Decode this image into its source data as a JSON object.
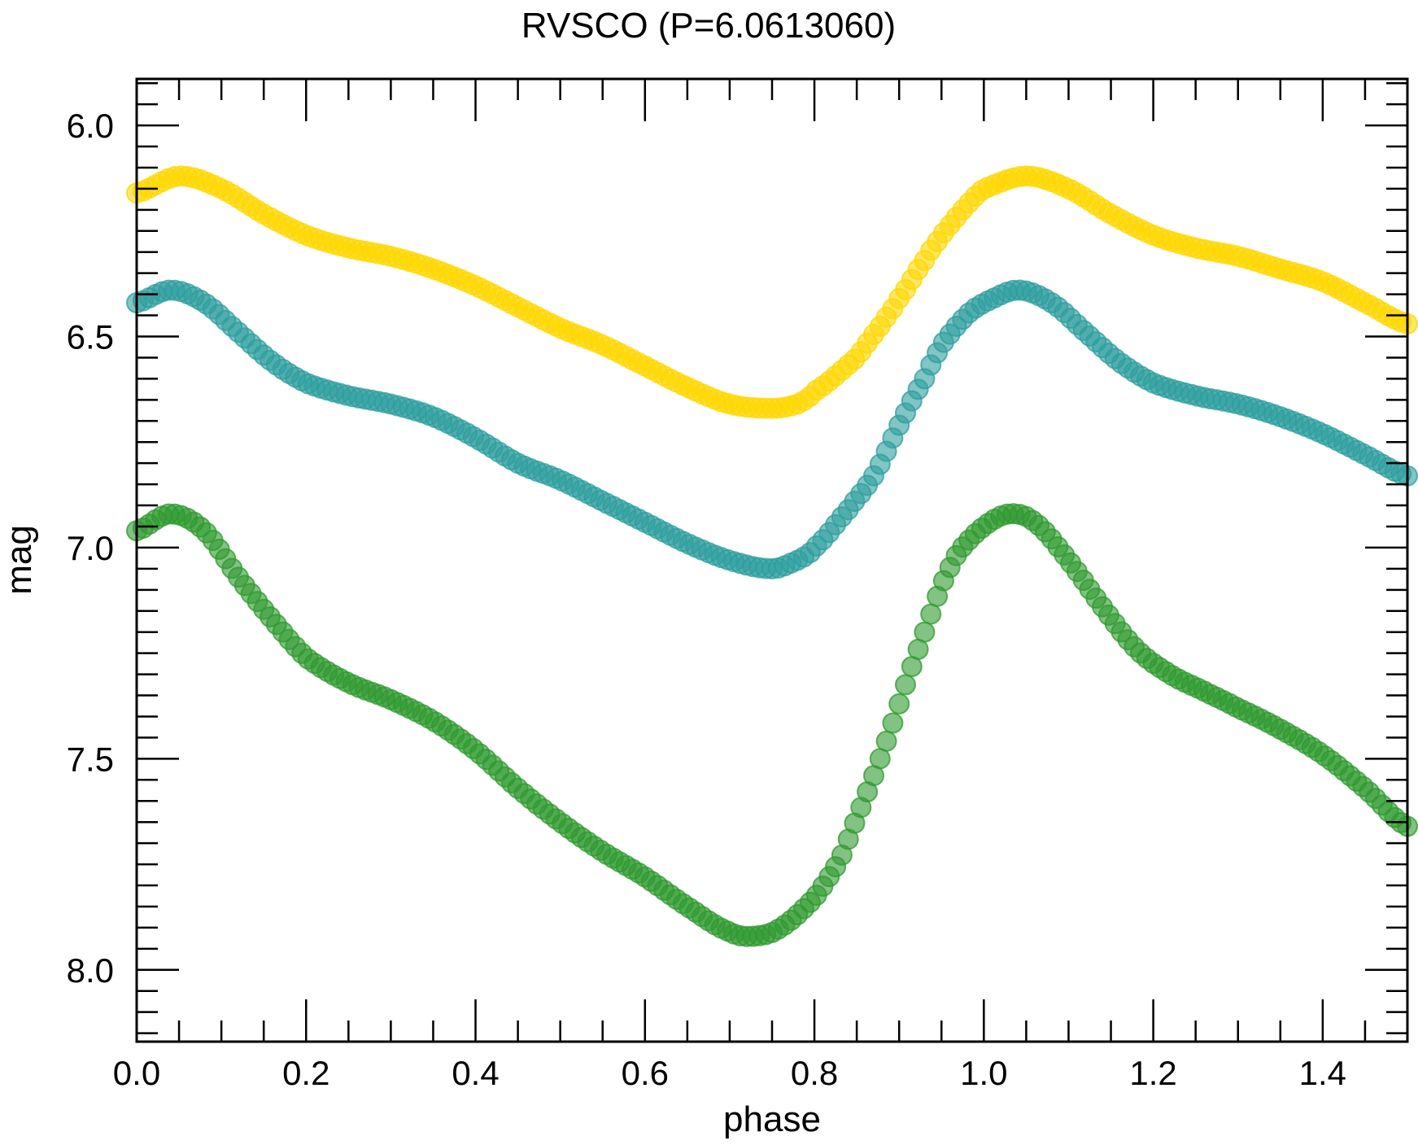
{
  "chart_data": {
    "type": "scatter",
    "title": "RVSCO (P=6.0613060)",
    "xlabel": "phase",
    "ylabel": "mag",
    "xlim": [
      0.0,
      1.5
    ],
    "ylim": [
      8.17,
      5.89
    ],
    "y_inverted": true,
    "grid": false,
    "x_ticks": [
      "0.0",
      "0.2",
      "0.4",
      "0.6",
      "0.8",
      "1.0",
      "1.2",
      "1.4"
    ],
    "y_ticks": [
      "6.0",
      "6.5",
      "7.0",
      "7.5",
      "8.0"
    ],
    "series": [
      {
        "color": "#FFD700",
        "points": [
          [
            0.0,
            6.16
          ],
          [
            0.05,
            6.12
          ],
          [
            0.1,
            6.15
          ],
          [
            0.15,
            6.21
          ],
          [
            0.2,
            6.26
          ],
          [
            0.25,
            6.29
          ],
          [
            0.3,
            6.31
          ],
          [
            0.35,
            6.34
          ],
          [
            0.4,
            6.38
          ],
          [
            0.45,
            6.43
          ],
          [
            0.5,
            6.48
          ],
          [
            0.55,
            6.52
          ],
          [
            0.6,
            6.57
          ],
          [
            0.65,
            6.62
          ],
          [
            0.7,
            6.66
          ],
          [
            0.75,
            6.67
          ],
          [
            0.78,
            6.66
          ],
          [
            0.8,
            6.63
          ],
          [
            0.85,
            6.55
          ],
          [
            0.88,
            6.47
          ],
          [
            0.9,
            6.41
          ],
          [
            0.93,
            6.32
          ],
          [
            0.95,
            6.26
          ],
          [
            0.98,
            6.19
          ],
          [
            1.0,
            6.15
          ],
          [
            1.05,
            6.12
          ],
          [
            1.1,
            6.15
          ],
          [
            1.15,
            6.21
          ],
          [
            1.2,
            6.26
          ],
          [
            1.25,
            6.29
          ],
          [
            1.3,
            6.31
          ],
          [
            1.35,
            6.34
          ],
          [
            1.4,
            6.37
          ],
          [
            1.45,
            6.42
          ],
          [
            1.5,
            6.47
          ]
        ]
      },
      {
        "color": "#2E9E9E",
        "points": [
          [
            0.0,
            6.42
          ],
          [
            0.04,
            6.39
          ],
          [
            0.08,
            6.42
          ],
          [
            0.12,
            6.49
          ],
          [
            0.16,
            6.56
          ],
          [
            0.2,
            6.61
          ],
          [
            0.25,
            6.64
          ],
          [
            0.3,
            6.66
          ],
          [
            0.35,
            6.69
          ],
          [
            0.4,
            6.74
          ],
          [
            0.45,
            6.8
          ],
          [
            0.5,
            6.84
          ],
          [
            0.55,
            6.89
          ],
          [
            0.6,
            6.94
          ],
          [
            0.65,
            6.99
          ],
          [
            0.7,
            7.03
          ],
          [
            0.75,
            7.05
          ],
          [
            0.78,
            7.03
          ],
          [
            0.8,
            7.0
          ],
          [
            0.84,
            6.91
          ],
          [
            0.87,
            6.83
          ],
          [
            0.9,
            6.71
          ],
          [
            0.93,
            6.6
          ],
          [
            0.95,
            6.52
          ],
          [
            0.98,
            6.45
          ],
          [
            1.0,
            6.42
          ],
          [
            1.04,
            6.39
          ],
          [
            1.08,
            6.42
          ],
          [
            1.12,
            6.49
          ],
          [
            1.16,
            6.56
          ],
          [
            1.2,
            6.61
          ],
          [
            1.25,
            6.64
          ],
          [
            1.3,
            6.66
          ],
          [
            1.35,
            6.69
          ],
          [
            1.4,
            6.73
          ],
          [
            1.45,
            6.78
          ],
          [
            1.5,
            6.83
          ]
        ]
      },
      {
        "color": "#2F9A2F",
        "points": [
          [
            0.0,
            6.96
          ],
          [
            0.04,
            6.92
          ],
          [
            0.08,
            6.96
          ],
          [
            0.12,
            7.07
          ],
          [
            0.16,
            7.17
          ],
          [
            0.2,
            7.26
          ],
          [
            0.25,
            7.32
          ],
          [
            0.3,
            7.36
          ],
          [
            0.35,
            7.41
          ],
          [
            0.4,
            7.48
          ],
          [
            0.45,
            7.57
          ],
          [
            0.5,
            7.65
          ],
          [
            0.55,
            7.72
          ],
          [
            0.6,
            7.78
          ],
          [
            0.65,
            7.85
          ],
          [
            0.7,
            7.91
          ],
          [
            0.73,
            7.92
          ],
          [
            0.76,
            7.9
          ],
          [
            0.8,
            7.83
          ],
          [
            0.83,
            7.74
          ],
          [
            0.85,
            7.64
          ],
          [
            0.87,
            7.54
          ],
          [
            0.89,
            7.43
          ],
          [
            0.91,
            7.31
          ],
          [
            0.93,
            7.2
          ],
          [
            0.95,
            7.09
          ],
          [
            0.97,
            7.01
          ],
          [
            1.0,
            6.95
          ],
          [
            1.03,
            6.92
          ],
          [
            1.06,
            6.94
          ],
          [
            1.1,
            7.03
          ],
          [
            1.14,
            7.14
          ],
          [
            1.18,
            7.24
          ],
          [
            1.22,
            7.3
          ],
          [
            1.26,
            7.34
          ],
          [
            1.3,
            7.38
          ],
          [
            1.35,
            7.43
          ],
          [
            1.4,
            7.49
          ],
          [
            1.45,
            7.57
          ],
          [
            1.5,
            7.66
          ]
        ]
      }
    ]
  }
}
